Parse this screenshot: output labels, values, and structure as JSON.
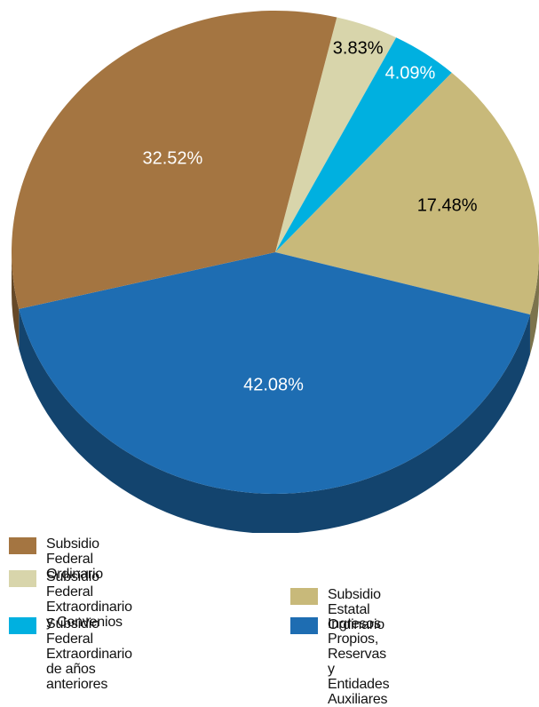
{
  "chart_data": {
    "type": "pie",
    "style": "3d",
    "slices": [
      {
        "label": "Subsidio Federal Extraordinario\ny Convenios",
        "value": 3.83,
        "value_label": "3.83%",
        "color": "#d8d5ab",
        "label_color": "#000000"
      },
      {
        "label": "Subsidio Federal Extraordinario\nde años anteriores",
        "value": 4.09,
        "value_label": "4.09%",
        "color": "#00b0e0",
        "label_color": "#ffffff"
      },
      {
        "label": "Subsidio Estatal Ordinario",
        "value": 17.48,
        "value_label": "17.48%",
        "color": "#c8b97a",
        "label_color": "#000000"
      },
      {
        "label": "Ingresos Propios, Reservas y\nEntidades Auxiliares",
        "value": 42.08,
        "value_label": "42.08%",
        "color": "#1e6db2",
        "label_color": "#ffffff"
      },
      {
        "label": "Subsidio Federal Ordinario",
        "value": 32.52,
        "value_label": "32.52%",
        "color": "#a47541",
        "label_color": "#ffffff"
      }
    ],
    "legend_order": [
      4,
      0,
      1,
      2,
      3
    ],
    "legend_position": "bottom"
  }
}
